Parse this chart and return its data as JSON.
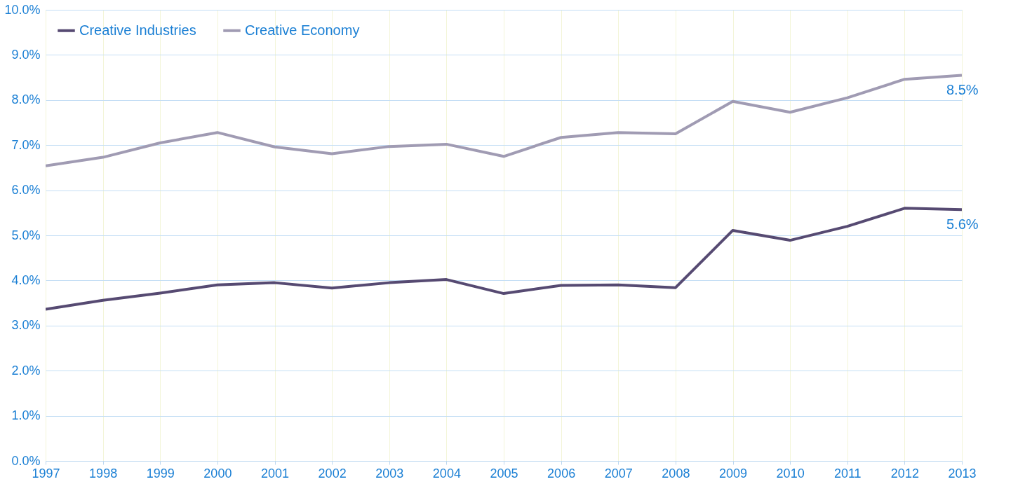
{
  "chart_data": {
    "type": "line",
    "x": [
      1997,
      1998,
      1999,
      2000,
      2001,
      2002,
      2003,
      2004,
      2005,
      2006,
      2007,
      2008,
      2009,
      2010,
      2011,
      2012,
      2013
    ],
    "series": [
      {
        "name": "Creative Industries",
        "color": "#564a72",
        "values": [
          3.36,
          3.56,
          3.72,
          3.9,
          3.95,
          3.83,
          3.95,
          4.02,
          3.71,
          3.89,
          3.9,
          3.84,
          5.11,
          4.89,
          5.2,
          5.6,
          5.57
        ]
      },
      {
        "name": "Creative Economy",
        "color": "#a09bb3",
        "values": [
          6.54,
          6.73,
          7.05,
          7.28,
          6.96,
          6.81,
          6.97,
          7.02,
          6.75,
          7.17,
          7.28,
          7.25,
          7.97,
          7.73,
          8.05,
          8.46,
          8.55
        ]
      }
    ],
    "xlim": [
      1997,
      2013
    ],
    "xticks": [
      1997,
      1998,
      1999,
      2000,
      2001,
      2002,
      2003,
      2004,
      2005,
      2006,
      2007,
      2008,
      2009,
      2010,
      2011,
      2012,
      2013
    ],
    "ylim": [
      0,
      10
    ],
    "yticks": [
      {
        "value": 0,
        "label": "0.0%"
      },
      {
        "value": 1,
        "label": "1.0%"
      },
      {
        "value": 2,
        "label": "2.0%"
      },
      {
        "value": 3,
        "label": "3.0%"
      },
      {
        "value": 4,
        "label": "4.0%"
      },
      {
        "value": 5,
        "label": "5.0%"
      },
      {
        "value": 6,
        "label": "6.0%"
      },
      {
        "value": 7,
        "label": "7.0%"
      },
      {
        "value": 8,
        "label": "8.0%"
      },
      {
        "value": 9,
        "label": "9.0%"
      },
      {
        "value": 10,
        "label": "10.0%"
      }
    ],
    "annotations": [
      {
        "text": "8.5%",
        "x": 2013,
        "y": 8.55
      },
      {
        "text": "5.6%",
        "x": 2013,
        "y": 5.57
      }
    ],
    "grid": true,
    "legend": "top left",
    "marker": "none",
    "line_style": "solid"
  }
}
